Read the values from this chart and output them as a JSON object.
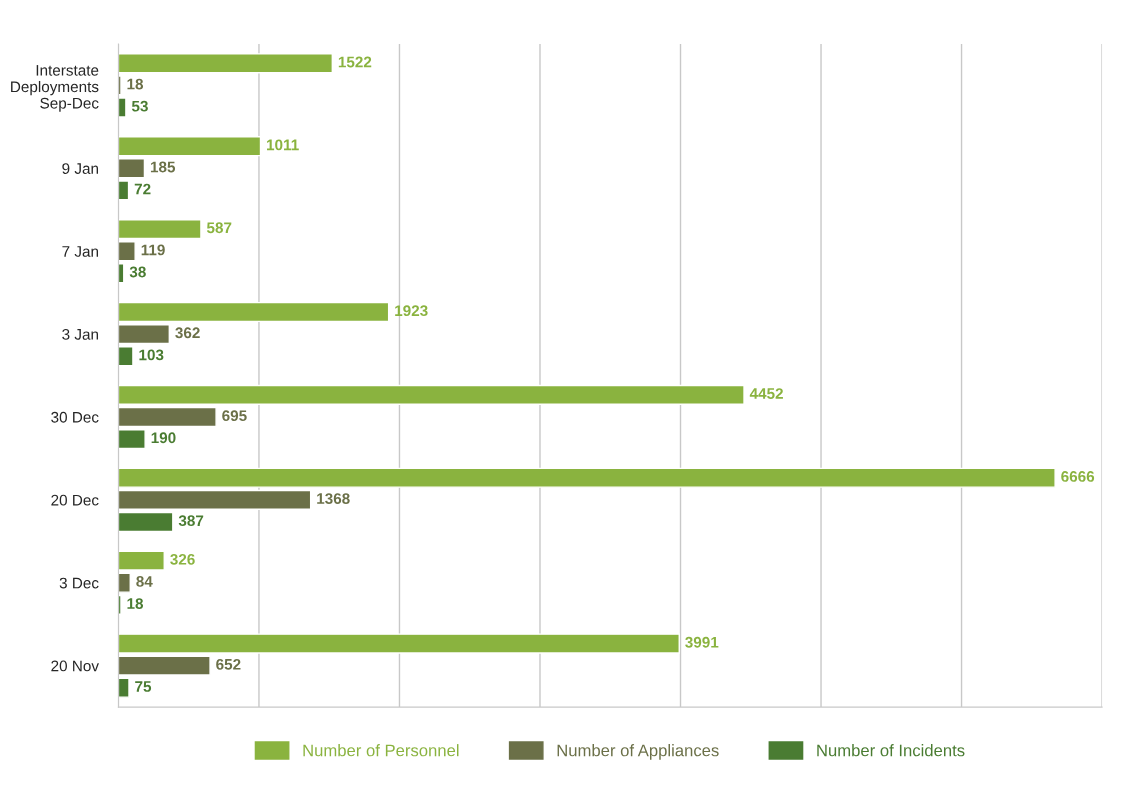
{
  "chart_data": {
    "type": "bar",
    "orientation": "horizontal",
    "categories": [
      "Interstate\nDeployments\nSep-Dec",
      "9 Jan",
      "7 Jan",
      "3 Jan",
      "30 Dec",
      "20 Dec",
      "3 Dec",
      "20 Nov"
    ],
    "series": [
      {
        "name": "Number of Personnel",
        "color": "#8ab33f",
        "values": [
          1522,
          1011,
          587,
          1923,
          4452,
          6666,
          326,
          3991
        ]
      },
      {
        "name": "Number of Appliances",
        "color": "#6b7048",
        "values": [
          18,
          185,
          119,
          362,
          695,
          1368,
          84,
          652
        ]
      },
      {
        "name": "Number of Incidents",
        "color": "#4a7c32",
        "values": [
          53,
          72,
          38,
          103,
          190,
          387,
          18,
          75
        ]
      }
    ],
    "xlim": [
      0,
      7000
    ],
    "xticks": [
      {
        "value": 0,
        "label": null
      },
      {
        "value": 1000,
        "label": null
      },
      {
        "value": 2000,
        "label": null
      },
      {
        "value": 3000,
        "label": null
      },
      {
        "value": 4000,
        "label": null
      },
      {
        "value": 5000,
        "label": null
      },
      {
        "value": 6000,
        "label": null
      },
      {
        "value": 7000,
        "label": null
      }
    ],
    "tick_labels": "y",
    "grid": "x",
    "data_labels": true,
    "legend": "bottom"
  }
}
